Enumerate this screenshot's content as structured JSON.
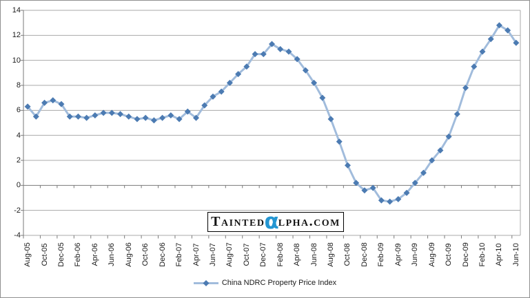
{
  "chart_data": {
    "type": "line",
    "title": "",
    "xlabel": "",
    "ylabel": "",
    "ylim": [
      -4,
      14
    ],
    "y_ticks": [
      14,
      12,
      10,
      8,
      6,
      4,
      2,
      0,
      -2,
      -4
    ],
    "grid": "horizontal",
    "legend_position": "bottom-center",
    "marker_shape": "diamond",
    "categories": [
      "Aug-05",
      "Sep-05",
      "Oct-05",
      "Nov-05",
      "Dec-05",
      "Jan-06",
      "Feb-06",
      "Mar-06",
      "Apr-06",
      "May-06",
      "Jun-06",
      "Jul-06",
      "Aug-06",
      "Sep-06",
      "Oct-06",
      "Nov-06",
      "Dec-06",
      "Jan-07",
      "Feb-07",
      "Mar-07",
      "Apr-07",
      "May-07",
      "Jun-07",
      "Jul-07",
      "Aug-07",
      "Sep-07",
      "Oct-07",
      "Nov-07",
      "Dec-07",
      "Jan-08",
      "Feb-08",
      "Mar-08",
      "Apr-08",
      "May-08",
      "Jun-08",
      "Jul-08",
      "Aug-08",
      "Sep-08",
      "Oct-08",
      "Nov-08",
      "Dec-08",
      "Jan-09",
      "Feb-09",
      "Mar-09",
      "Apr-09",
      "May-09",
      "Jun-09",
      "Jul-09",
      "Aug-09",
      "Sep-09",
      "Oct-09",
      "Nov-09",
      "Dec-09",
      "Jan-10",
      "Feb-10",
      "Mar-10",
      "Apr-10",
      "May-10",
      "Jun-10"
    ],
    "x_tick_labels": [
      "Aug-05",
      "Oct-05",
      "Dec-05",
      "Feb-06",
      "Apr-06",
      "Jun-06",
      "Aug-06",
      "Oct-06",
      "Dec-06",
      "Feb-07",
      "Apr-07",
      "Jun-07",
      "Aug-07",
      "Oct-07",
      "Dec-07",
      "Feb-08",
      "Apr-08",
      "Jun-08",
      "Aug-08",
      "Oct-08",
      "Dec-08",
      "Feb-09",
      "Apr-09",
      "Jun-09",
      "Aug-09",
      "Oct-09",
      "Dec-09",
      "Feb-10",
      "Apr-10",
      "Jun-10"
    ],
    "x_tick_interval": 2,
    "series": [
      {
        "name": "China NDRC Property Price Index",
        "values": [
          6.3,
          5.5,
          6.6,
          6.8,
          6.5,
          5.5,
          5.5,
          5.4,
          5.6,
          5.8,
          5.8,
          5.7,
          5.5,
          5.3,
          5.4,
          5.2,
          5.4,
          5.6,
          5.3,
          5.9,
          5.4,
          6.4,
          7.1,
          7.5,
          8.2,
          8.9,
          9.5,
          10.5,
          10.5,
          11.3,
          10.9,
          10.7,
          10.1,
          9.2,
          8.2,
          7.0,
          5.3,
          3.5,
          1.6,
          0.2,
          -0.4,
          -0.2,
          -1.2,
          -1.3,
          -1.1,
          -0.6,
          0.2,
          1.0,
          2.0,
          2.8,
          3.9,
          5.7,
          7.8,
          9.5,
          10.7,
          11.7,
          12.8,
          12.4,
          11.4
        ]
      }
    ],
    "colors": {
      "series_line": "#a1bcdc",
      "series_marker": "#4c7bb2",
      "gridline": "#a8a8a8",
      "axis": "#7a7a7a",
      "label_text": "#1a1a1a"
    }
  },
  "watermark": {
    "text_before_alpha": "Tainted",
    "alpha_char": "α",
    "text_after_alpha": "lpha.com",
    "alpha_color": "#2496d2"
  },
  "legend": {
    "label": "China NDRC Property Price Index"
  }
}
